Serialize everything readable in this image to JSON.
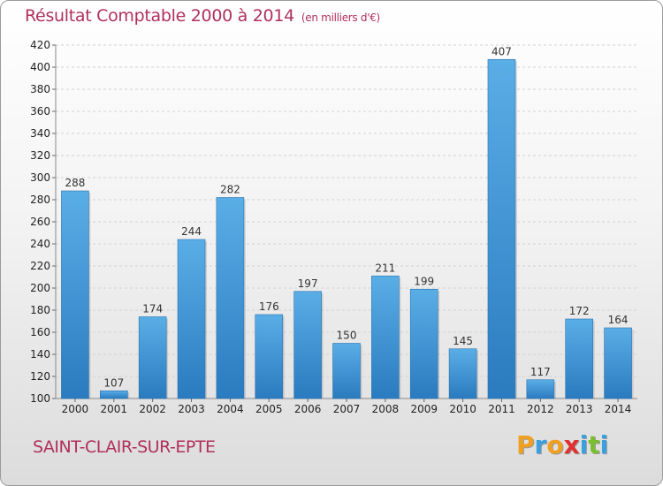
{
  "title": "Résultat Comptable 2000 à 2014",
  "subtitle": "(en milliers d'€)",
  "town": "SAINT-CLAIR-SUR-EPTE",
  "logo": {
    "text": "Proxiti",
    "letters": [
      {
        "ch": "P",
        "color": "#f0a020"
      },
      {
        "ch": "r",
        "color": "#3aa0e0"
      },
      {
        "ch": "o",
        "color": "#f0a020"
      },
      {
        "ch": "x",
        "color": "#e03030"
      },
      {
        "ch": "i",
        "color": "#3aa0e0"
      },
      {
        "ch": "t",
        "color": "#7abf30"
      },
      {
        "ch": "i",
        "color": "#3aa0e0"
      }
    ]
  },
  "colors": {
    "bar_top": "#5aaee6",
    "bar_bottom": "#2a7bbf",
    "title": "#b0305a"
  },
  "chart_data": {
    "type": "bar",
    "categories": [
      "2000",
      "2001",
      "2002",
      "2003",
      "2004",
      "2005",
      "2006",
      "2007",
      "2008",
      "2009",
      "2010",
      "2011",
      "2012",
      "2013",
      "2014"
    ],
    "values": [
      288,
      107,
      174,
      244,
      282,
      176,
      197,
      150,
      211,
      199,
      145,
      407,
      117,
      172,
      164
    ],
    "ylim": [
      100,
      420
    ],
    "yticks": [
      100,
      120,
      140,
      160,
      180,
      200,
      220,
      240,
      260,
      280,
      300,
      320,
      340,
      360,
      380,
      400,
      420
    ],
    "grid": true,
    "title": "Résultat Comptable 2000 à 2014",
    "xlabel": "",
    "ylabel": ""
  }
}
